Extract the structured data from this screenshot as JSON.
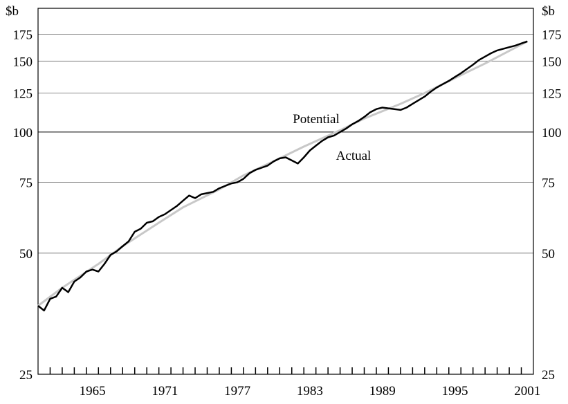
{
  "chart_data": {
    "type": "line",
    "y_unit_label": "$b",
    "log_scale_y": true,
    "ylim": [
      25,
      203
    ],
    "yticks": [
      25,
      50,
      75,
      100,
      125,
      150,
      175
    ],
    "xlim": [
      1961,
      2002
    ],
    "xticks": [
      1965,
      1971,
      1977,
      1983,
      1989,
      1995,
      2001
    ],
    "grid": true,
    "series": [
      {
        "name": "Potential",
        "color": "#c8c8c8",
        "x": [
          1961,
          1963,
          1966,
          1968,
          1971,
          1973,
          1976,
          1978,
          1981,
          1983,
          1986,
          1988,
          1991,
          1993,
          1996,
          1998,
          2001.5
        ],
        "values": [
          37,
          41,
          47,
          52,
          59.5,
          65,
          72,
          78,
          86,
          92,
          101,
          108,
          117.5,
          125,
          138.5,
          148,
          168
        ]
      },
      {
        "name": "Actual",
        "color": "#000000",
        "x": [
          1961,
          1961.5,
          1962,
          1962.5,
          1963,
          1963.5,
          1964,
          1964.5,
          1965,
          1965.5,
          1966,
          1966.5,
          1967,
          1967.5,
          1968,
          1968.5,
          1969,
          1969.5,
          1970,
          1970.5,
          1971,
          1971.5,
          1972,
          1972.5,
          1973,
          1973.5,
          1974,
          1974.5,
          1975,
          1975.5,
          1976,
          1976.5,
          1977,
          1977.5,
          1978,
          1978.5,
          1979,
          1979.5,
          1980,
          1980.5,
          1981,
          1981.5,
          1982,
          1982.5,
          1983,
          1983.5,
          1984,
          1984.5,
          1985,
          1985.5,
          1986,
          1986.5,
          1987,
          1987.5,
          1988,
          1988.5,
          1989,
          1989.5,
          1990,
          1990.5,
          1991,
          1991.5,
          1992,
          1992.5,
          1993,
          1993.5,
          1994,
          1994.5,
          1995,
          1995.5,
          1996,
          1996.5,
          1997,
          1997.5,
          1998,
          1998.5,
          1999,
          1999.5,
          2000,
          2000.5,
          2001,
          2001.5
        ],
        "values": [
          37,
          36,
          38.5,
          39,
          41,
          40,
          42.5,
          43.5,
          45,
          45.5,
          45,
          47,
          49.5,
          50.5,
          52,
          53.5,
          56.5,
          57.5,
          59.5,
          60,
          61.5,
          62.5,
          64,
          65.5,
          67.5,
          69.5,
          68.5,
          70,
          70.5,
          71,
          72.5,
          73.5,
          74.5,
          75,
          76.5,
          79,
          80.5,
          81.5,
          82.5,
          84.5,
          86,
          86.5,
          85,
          83.5,
          86.5,
          90,
          92.5,
          95,
          97,
          98,
          100,
          102,
          104.5,
          106.5,
          109,
          112,
          114,
          115,
          114.5,
          114,
          113.5,
          115,
          117.5,
          120,
          122.5,
          126,
          129,
          131.5,
          134,
          137,
          140,
          143.5,
          147,
          151,
          154,
          157,
          159.5,
          161,
          162.5,
          164,
          166,
          168
        ]
      }
    ]
  }
}
